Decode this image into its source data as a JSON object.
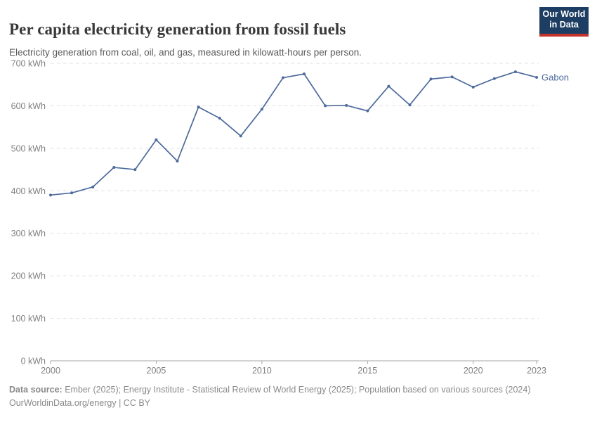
{
  "header": {
    "title": "Per capita electricity generation from fossil fuels",
    "subtitle": "Electricity generation from coal, oil, and gas, measured in kilowatt-hours per person.",
    "logo": {
      "line1": "Our World",
      "line2": "in Data"
    }
  },
  "chart_data": {
    "type": "line",
    "title": "Per capita electricity generation from fossil fuels",
    "xlabel": "",
    "ylabel": "",
    "x": [
      2000,
      2001,
      2002,
      2003,
      2004,
      2005,
      2006,
      2007,
      2008,
      2009,
      2010,
      2011,
      2012,
      2013,
      2014,
      2015,
      2016,
      2017,
      2018,
      2019,
      2020,
      2021,
      2022,
      2023
    ],
    "series": [
      {
        "name": "Gabon",
        "color": "#4C6A9C",
        "values": [
          390,
          395,
          409,
          455,
          450,
          520,
          470,
          597,
          571,
          529,
          592,
          666,
          675,
          600,
          601,
          588,
          646,
          602,
          663,
          668,
          644,
          664,
          680,
          667
        ]
      }
    ],
    "xticks": [
      2000,
      2005,
      2010,
      2015,
      2020,
      2023
    ],
    "yticks": [
      0,
      100,
      200,
      300,
      400,
      500,
      600,
      700
    ],
    "ytick_suffix": " kWh",
    "xlim": [
      2000,
      2023
    ],
    "ylim": [
      0,
      700
    ],
    "grid": "horizontal-dashed",
    "legend_position": "end-of-line"
  },
  "footer": {
    "source_label": "Data source:",
    "source_text": " Ember (2025); Energy Institute - Statistical Review of World Energy (2025); Population based on various sources (2024)",
    "link_line": "OurWorldinData.org/energy | CC BY"
  },
  "colors": {
    "line": "#4C6A9C",
    "grid": "#e0e0e0",
    "axis": "#a5a5a5",
    "logo_bg": "#1d3d63",
    "logo_red": "#c5342b"
  }
}
